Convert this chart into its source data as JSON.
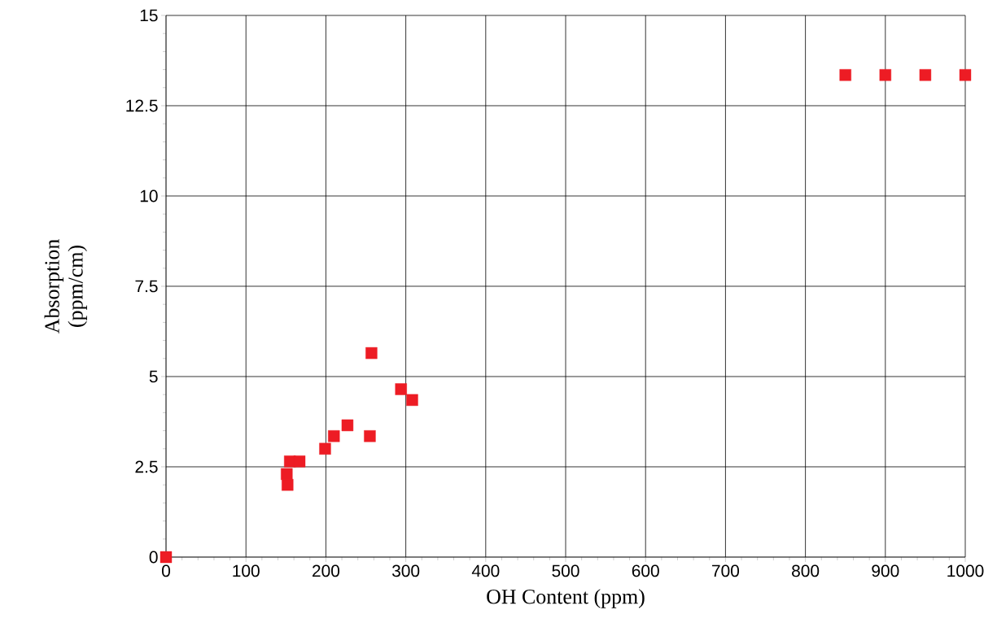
{
  "chart_data": {
    "type": "scatter",
    "xlabel": "OH Content (ppm)",
    "ylabel": "Absorption (ppm/cm)",
    "x": [
      0,
      152,
      151,
      155,
      167,
      199,
      210,
      227,
      255,
      257,
      294,
      308,
      850,
      900,
      950,
      1000
    ],
    "values": [
      0,
      2.0,
      2.3,
      2.65,
      2.65,
      3.0,
      3.35,
      3.65,
      3.35,
      5.65,
      4.65,
      4.35,
      13.35,
      13.35,
      13.35,
      13.35
    ],
    "color": "#ed1c24",
    "marker": "square",
    "xlim": [
      0,
      1000
    ],
    "xticks": [
      0,
      100,
      200,
      300,
      400,
      500,
      600,
      700,
      800,
      900,
      1000
    ],
    "ylim": [
      0,
      15
    ],
    "yticks": [
      0,
      2.5,
      5,
      7.5,
      10,
      12.5,
      15
    ],
    "grid": true
  }
}
